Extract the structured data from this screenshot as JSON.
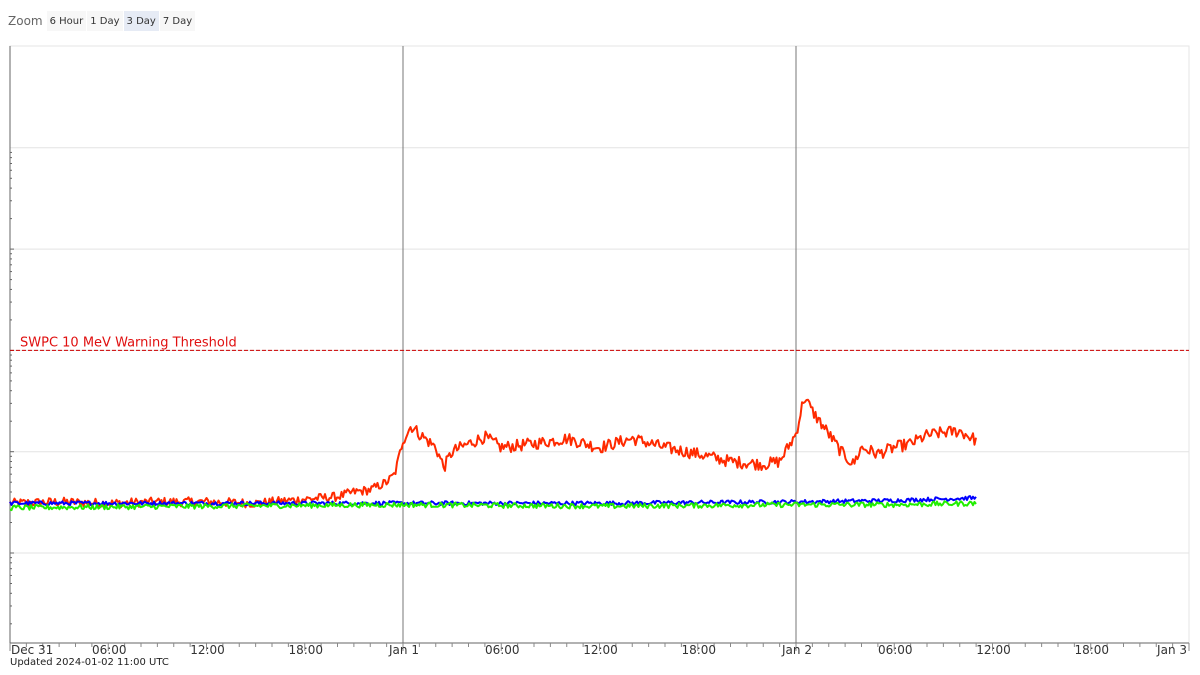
{
  "zoom": {
    "label": "Zoom",
    "buttons": [
      {
        "label": "6 Hour",
        "active": false
      },
      {
        "label": "1 Day",
        "active": false
      },
      {
        "label": "3 Day",
        "active": true
      },
      {
        "label": "7 Day",
        "active": false
      }
    ]
  },
  "updated_text": "Updated 2024-01-02 11:00 UTC",
  "chart_data": {
    "type": "line",
    "title": "",
    "xlabel": "",
    "ylabel": "",
    "x_range": [
      "2023-12-31 00:00",
      "2024-01-03 00:00"
    ],
    "x_tick_labels": [
      "Dec 31",
      "06:00",
      "12:00",
      "18:00",
      "Jan 1",
      "06:00",
      "12:00",
      "18:00",
      "Jan 2",
      "06:00",
      "12:00",
      "18:00",
      "Jan 3"
    ],
    "y_scale": "log",
    "y_tick_labels_visible": false,
    "grid": true,
    "threshold": {
      "label": "SWPC 10 MeV Warning Threshold",
      "color": "#cc0000"
    },
    "series": [
      {
        "color": "#ff2a00",
        "times": [
          "2023-12-31 00:00",
          "2023-12-31 03:00",
          "2023-12-31 06:00",
          "2023-12-31 09:00",
          "2023-12-31 12:00",
          "2023-12-31 15:00",
          "2023-12-31 18:00",
          "2023-12-31 20:00",
          "2023-12-31 21:00",
          "2023-12-31 22:00",
          "2023-12-31 23:00",
          "2023-12-31 23:30",
          "2024-01-01 00:00",
          "2024-01-01 00:30",
          "2024-01-01 01:00",
          "2024-01-01 02:00",
          "2024-01-01 02:30",
          "2024-01-01 03:00",
          "2024-01-01 04:00",
          "2024-01-01 05:00",
          "2024-01-01 06:00",
          "2024-01-01 08:00",
          "2024-01-01 10:00",
          "2024-01-01 12:00",
          "2024-01-01 14:00",
          "2024-01-01 16:00",
          "2024-01-01 18:00",
          "2024-01-01 20:00",
          "2024-01-01 22:00",
          "2024-01-01 23:00",
          "2024-01-02 00:00",
          "2024-01-02 00:30",
          "2024-01-02 01:00",
          "2024-01-02 02:00",
          "2024-01-02 02:45",
          "2024-01-02 03:30",
          "2024-01-02 04:00",
          "2024-01-02 05:00",
          "2024-01-02 06:00",
          "2024-01-02 07:00",
          "2024-01-02 08:00",
          "2024-01-02 09:00",
          "2024-01-02 10:00",
          "2024-01-02 11:00"
        ],
        "values": [
          0.31,
          0.32,
          0.31,
          0.32,
          0.32,
          0.31,
          0.34,
          0.36,
          0.4,
          0.42,
          0.5,
          0.6,
          1.3,
          1.8,
          1.5,
          1.1,
          0.7,
          1.0,
          1.2,
          1.4,
          1.1,
          1.2,
          1.35,
          1.1,
          1.35,
          1.1,
          0.95,
          0.8,
          0.75,
          0.8,
          1.5,
          3.5,
          2.5,
          1.5,
          1.0,
          0.75,
          1.1,
          0.95,
          1.1,
          1.2,
          1.45,
          1.55,
          1.6,
          1.3
        ]
      },
      {
        "color": "#0000ff",
        "times": [
          "2023-12-31 00:00",
          "2023-12-31 12:00",
          "2024-01-01 00:00",
          "2024-01-01 12:00",
          "2024-01-02 00:00",
          "2024-01-02 06:00",
          "2024-01-02 11:00"
        ],
        "values": [
          0.31,
          0.31,
          0.31,
          0.31,
          0.32,
          0.33,
          0.35
        ]
      },
      {
        "color": "#22ee00",
        "times": [
          "2023-12-31 00:00",
          "2023-12-31 12:00",
          "2024-01-01 00:00",
          "2024-01-01 12:00",
          "2024-01-02 00:00",
          "2024-01-02 06:00",
          "2024-01-02 11:00"
        ],
        "values": [
          0.28,
          0.29,
          0.3,
          0.29,
          0.3,
          0.3,
          0.31
        ]
      }
    ]
  }
}
